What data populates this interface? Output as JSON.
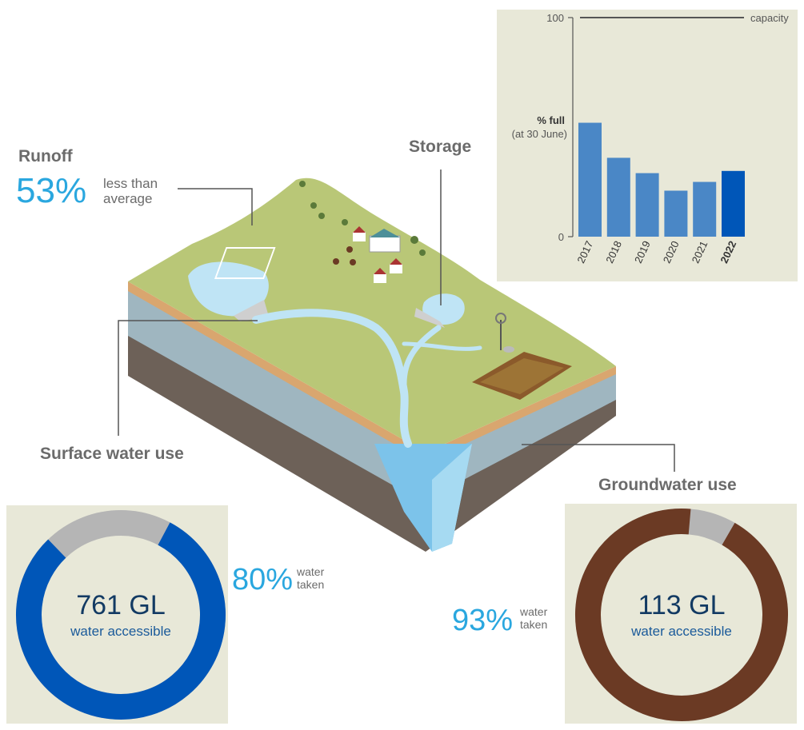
{
  "runoff": {
    "title": "Runoff",
    "percent": "53%",
    "note_line1": "less than",
    "note_line2": "average"
  },
  "storage": {
    "title": "Storage"
  },
  "surface_water": {
    "title": "Surface water use",
    "percent": "80%",
    "note_line1": "water",
    "note_line2": "taken",
    "volume": "761 GL",
    "volume_label": "water accessible",
    "fraction_taken": 0.8,
    "colors": {
      "taken": "#0056b8",
      "remaining": "#b5b5b5"
    }
  },
  "groundwater": {
    "title": "Groundwater use",
    "percent": "93%",
    "note_line1": "water",
    "note_line2": "taken",
    "volume": "113 GL",
    "volume_label": "water accessible",
    "fraction_taken": 0.93,
    "colors": {
      "taken": "#6b3a24",
      "remaining": "#b5b5b5"
    }
  },
  "chart_data": {
    "type": "bar",
    "categories": [
      "2017",
      "2018",
      "2019",
      "2020",
      "2021",
      "2022"
    ],
    "values": [
      52,
      36,
      29,
      21,
      25,
      30
    ],
    "ylabel_line1": "% full",
    "ylabel_line2": "(at 30 June)",
    "ylim": [
      0,
      100
    ],
    "yticks": [
      "0",
      "100"
    ],
    "reference_line": {
      "value": 100,
      "label": "capacity"
    },
    "highlight_category": "2022",
    "colors": {
      "bar": "#4a87c6",
      "highlight": "#0056b8"
    }
  }
}
